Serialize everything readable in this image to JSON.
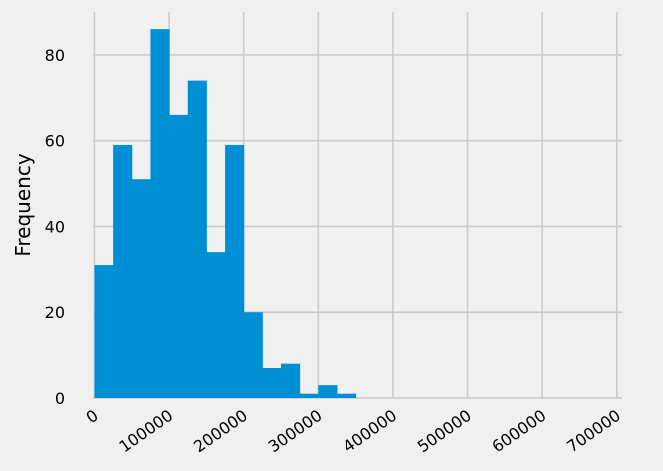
{
  "chart_data": {
    "type": "histogram",
    "title": "",
    "xlabel": "",
    "ylabel": "Frequency",
    "xlim": [
      -2000,
      707000
    ],
    "ylim": [
      0,
      90
    ],
    "grid": true,
    "background_color": "#f0f0f0",
    "bar_color": "#008fd5",
    "grid_color": "#cbcbcb",
    "bin_width": 25000,
    "bins": [
      {
        "start": 0,
        "end": 25000,
        "count": 31
      },
      {
        "start": 25000,
        "end": 50000,
        "count": 59
      },
      {
        "start": 50000,
        "end": 75000,
        "count": 51
      },
      {
        "start": 75000,
        "end": 100000,
        "count": 86
      },
      {
        "start": 100000,
        "end": 125000,
        "count": 66
      },
      {
        "start": 125000,
        "end": 150000,
        "count": 74
      },
      {
        "start": 150000,
        "end": 175000,
        "count": 34
      },
      {
        "start": 175000,
        "end": 200000,
        "count": 59
      },
      {
        "start": 200000,
        "end": 225000,
        "count": 20
      },
      {
        "start": 225000,
        "end": 250000,
        "count": 7
      },
      {
        "start": 250000,
        "end": 275000,
        "count": 8
      },
      {
        "start": 275000,
        "end": 300000,
        "count": 1
      },
      {
        "start": 300000,
        "end": 325000,
        "count": 3
      },
      {
        "start": 325000,
        "end": 350000,
        "count": 1
      }
    ],
    "x_ticks": [
      {
        "value": 0,
        "label": "0"
      },
      {
        "value": 100000,
        "label": "100000"
      },
      {
        "value": 200000,
        "label": "200000"
      },
      {
        "value": 300000,
        "label": "300000"
      },
      {
        "value": 400000,
        "label": "400000"
      },
      {
        "value": 500000,
        "label": "500000"
      },
      {
        "value": 600000,
        "label": "600000"
      },
      {
        "value": 700000,
        "label": "700000"
      }
    ],
    "y_ticks": [
      {
        "value": 0,
        "label": "0"
      },
      {
        "value": 20,
        "label": "20"
      },
      {
        "value": 40,
        "label": "40"
      },
      {
        "value": 60,
        "label": "60"
      },
      {
        "value": 80,
        "label": "80"
      }
    ]
  }
}
